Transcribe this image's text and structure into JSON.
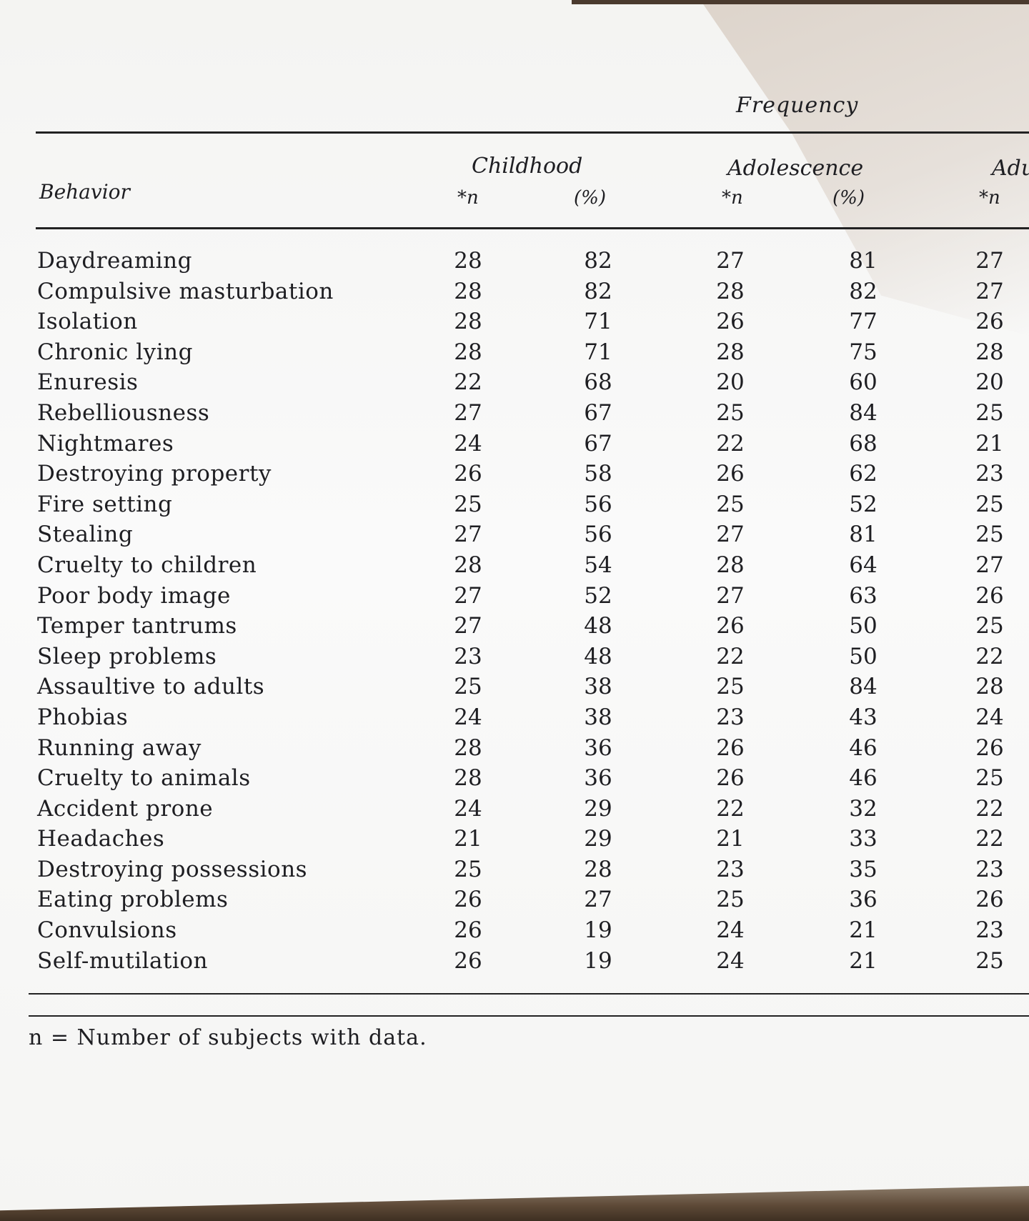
{
  "table": {
    "group_header": "Frequency",
    "behavior_header": "Behavior",
    "groups": {
      "childhood": "Childhood",
      "adolescence": "Adolescence",
      "adulthood": "Adu"
    },
    "subheaders": {
      "n_childhood": "*n",
      "pct_childhood": "(%)",
      "n_adolescence": "*n",
      "pct_adolescence": "(%)",
      "n_adulthood": "*n"
    },
    "rows": [
      {
        "behavior": "Daydreaming",
        "child_n": "28",
        "child_pct": "82",
        "adol_n": "27",
        "adol_pct": "81",
        "adult_n": "27"
      },
      {
        "behavior": "Compulsive masturbation",
        "child_n": "28",
        "child_pct": "82",
        "adol_n": "28",
        "adol_pct": "82",
        "adult_n": "27"
      },
      {
        "behavior": "Isolation",
        "child_n": "28",
        "child_pct": "71",
        "adol_n": "26",
        "adol_pct": "77",
        "adult_n": "26"
      },
      {
        "behavior": "Chronic lying",
        "child_n": "28",
        "child_pct": "71",
        "adol_n": "28",
        "adol_pct": "75",
        "adult_n": "28"
      },
      {
        "behavior": "Enuresis",
        "child_n": "22",
        "child_pct": "68",
        "adol_n": "20",
        "adol_pct": "60",
        "adult_n": "20"
      },
      {
        "behavior": "Rebelliousness",
        "child_n": "27",
        "child_pct": "67",
        "adol_n": "25",
        "adol_pct": "84",
        "adult_n": "25"
      },
      {
        "behavior": "Nightmares",
        "child_n": "24",
        "child_pct": "67",
        "adol_n": "22",
        "adol_pct": "68",
        "adult_n": "21"
      },
      {
        "behavior": "Destroying property",
        "child_n": "26",
        "child_pct": "58",
        "adol_n": "26",
        "adol_pct": "62",
        "adult_n": "23"
      },
      {
        "behavior": "Fire setting",
        "child_n": "25",
        "child_pct": "56",
        "adol_n": "25",
        "adol_pct": "52",
        "adult_n": "25"
      },
      {
        "behavior": "Stealing",
        "child_n": "27",
        "child_pct": "56",
        "adol_n": "27",
        "adol_pct": "81",
        "adult_n": "25"
      },
      {
        "behavior": "Cruelty to children",
        "child_n": "28",
        "child_pct": "54",
        "adol_n": "28",
        "adol_pct": "64",
        "adult_n": "27"
      },
      {
        "behavior": "Poor body image",
        "child_n": "27",
        "child_pct": "52",
        "adol_n": "27",
        "adol_pct": "63",
        "adult_n": "26"
      },
      {
        "behavior": "Temper tantrums",
        "child_n": "27",
        "child_pct": "48",
        "adol_n": "26",
        "adol_pct": "50",
        "adult_n": "25"
      },
      {
        "behavior": "Sleep problems",
        "child_n": "23",
        "child_pct": "48",
        "adol_n": "22",
        "adol_pct": "50",
        "adult_n": "22"
      },
      {
        "behavior": "Assaultive to adults",
        "child_n": "25",
        "child_pct": "38",
        "adol_n": "25",
        "adol_pct": "84",
        "adult_n": "28"
      },
      {
        "behavior": "Phobias",
        "child_n": "24",
        "child_pct": "38",
        "adol_n": "23",
        "adol_pct": "43",
        "adult_n": "24"
      },
      {
        "behavior": "Running away",
        "child_n": "28",
        "child_pct": "36",
        "adol_n": "26",
        "adol_pct": "46",
        "adult_n": "26"
      },
      {
        "behavior": "Cruelty to animals",
        "child_n": "28",
        "child_pct": "36",
        "adol_n": "26",
        "adol_pct": "46",
        "adult_n": "25"
      },
      {
        "behavior": "Accident prone",
        "child_n": "24",
        "child_pct": "29",
        "adol_n": "22",
        "adol_pct": "32",
        "adult_n": "22"
      },
      {
        "behavior": "Headaches",
        "child_n": "21",
        "child_pct": "29",
        "adol_n": "21",
        "adol_pct": "33",
        "adult_n": "22"
      },
      {
        "behavior": "Destroying possessions",
        "child_n": "25",
        "child_pct": "28",
        "adol_n": "23",
        "adol_pct": "35",
        "adult_n": "23"
      },
      {
        "behavior": "Eating problems",
        "child_n": "26",
        "child_pct": "27",
        "adol_n": "25",
        "adol_pct": "36",
        "adult_n": "26"
      },
      {
        "behavior": "Convulsions",
        "child_n": "26",
        "child_pct": "19",
        "adol_n": "24",
        "adol_pct": "21",
        "adult_n": "23"
      },
      {
        "behavior": "Self-mutilation",
        "child_n": "26",
        "child_pct": "19",
        "adol_n": "24",
        "adol_pct": "21",
        "adult_n": "25"
      }
    ],
    "footnote": "n = Number of subjects with data."
  }
}
